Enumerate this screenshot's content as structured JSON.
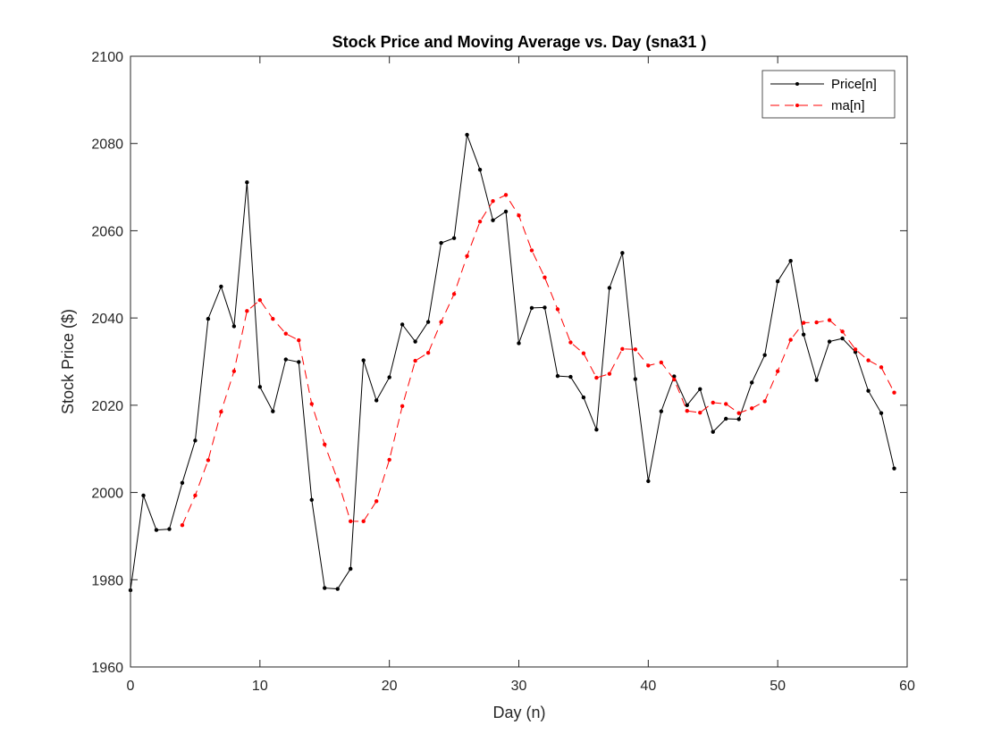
{
  "chart_data": {
    "type": "line",
    "title": "Stock Price and Moving Average vs. Day (sna31 )",
    "xlabel": "Day (n)",
    "ylabel": "Stock Price ($)",
    "xlim": [
      0,
      60
    ],
    "ylim": [
      1960,
      2100
    ],
    "xticks": [
      0,
      10,
      20,
      30,
      40,
      50,
      60
    ],
    "yticks": [
      1960,
      1980,
      2000,
      2020,
      2040,
      2060,
      2080,
      2100
    ],
    "grid": false,
    "legend_position": "top-right",
    "series": [
      {
        "name": "Price[n]",
        "color": "#000000",
        "line_style": "solid",
        "marker": "point",
        "x": [
          0,
          1,
          2,
          3,
          4,
          5,
          6,
          7,
          8,
          9,
          10,
          11,
          12,
          13,
          14,
          15,
          16,
          17,
          18,
          19,
          20,
          21,
          22,
          23,
          24,
          25,
          26,
          27,
          28,
          29,
          30,
          31,
          32,
          33,
          34,
          35,
          36,
          37,
          38,
          39,
          40,
          41,
          42,
          43,
          44,
          45,
          46,
          47,
          48,
          49,
          50,
          51,
          52,
          53,
          54,
          55,
          56,
          57,
          58,
          59
        ],
        "y": [
          1977.6,
          1999.3,
          1991.4,
          1991.6,
          2002.2,
          2011.9,
          2039.8,
          2047.2,
          2038.1,
          2071.1,
          2024.2,
          2018.6,
          2030.5,
          2029.9,
          1998.3,
          1978.1,
          1977.9,
          1982.5,
          2030.3,
          2021.1,
          2026.4,
          2038.5,
          2034.6,
          2039.1,
          2057.2,
          2058.3,
          2082.0,
          2074.0,
          2062.4,
          2064.4,
          2034.2,
          2042.3,
          2042.4,
          2026.7,
          2026.5,
          2021.8,
          2014.4,
          2046.9,
          2054.9,
          2026.0,
          2002.6,
          2018.6,
          2026.6,
          2020.0,
          2023.7,
          2013.9,
          2016.9,
          2016.8,
          2025.2,
          2031.5,
          2048.4,
          2053.1,
          2036.2,
          2025.8,
          2034.6,
          2035.3,
          2032.2,
          2023.3,
          2018.2,
          2005.5
        ]
      },
      {
        "name": "ma[n]",
        "color": "#ff0000",
        "line_style": "dashed",
        "marker": "point",
        "x": [
          4,
          5,
          6,
          7,
          8,
          9,
          10,
          11,
          12,
          13,
          14,
          15,
          16,
          17,
          18,
          19,
          20,
          21,
          22,
          23,
          24,
          25,
          26,
          27,
          28,
          29,
          30,
          31,
          32,
          33,
          34,
          35,
          36,
          37,
          38,
          39,
          40,
          41,
          42,
          43,
          44,
          45,
          46,
          47,
          48,
          49,
          50,
          51,
          52,
          53,
          54,
          55,
          56,
          57,
          58,
          59
        ],
        "y": [
          1992.5,
          1999.3,
          2007.4,
          2018.5,
          2027.8,
          2041.6,
          2044.1,
          2039.8,
          2036.4,
          2034.9,
          2020.3,
          2011.0,
          2002.9,
          1993.4,
          1993.4,
          1998.0,
          2007.5,
          2019.8,
          2030.2,
          2032.0,
          2039.1,
          2045.5,
          2054.2,
          2062.1,
          2066.8,
          2068.2,
          2063.5,
          2055.5,
          2049.3,
          2042.0,
          2034.4,
          2031.9,
          2026.3,
          2027.2,
          2032.9,
          2032.8,
          2029.1,
          2029.8,
          2025.9,
          2018.7,
          2018.3,
          2020.6,
          2020.3,
          2018.2,
          2019.3,
          2020.9,
          2027.8,
          2035.0,
          2038.9,
          2039.0,
          2039.5,
          2036.9,
          2032.8,
          2030.3,
          2028.7,
          2022.9
        ]
      }
    ]
  }
}
